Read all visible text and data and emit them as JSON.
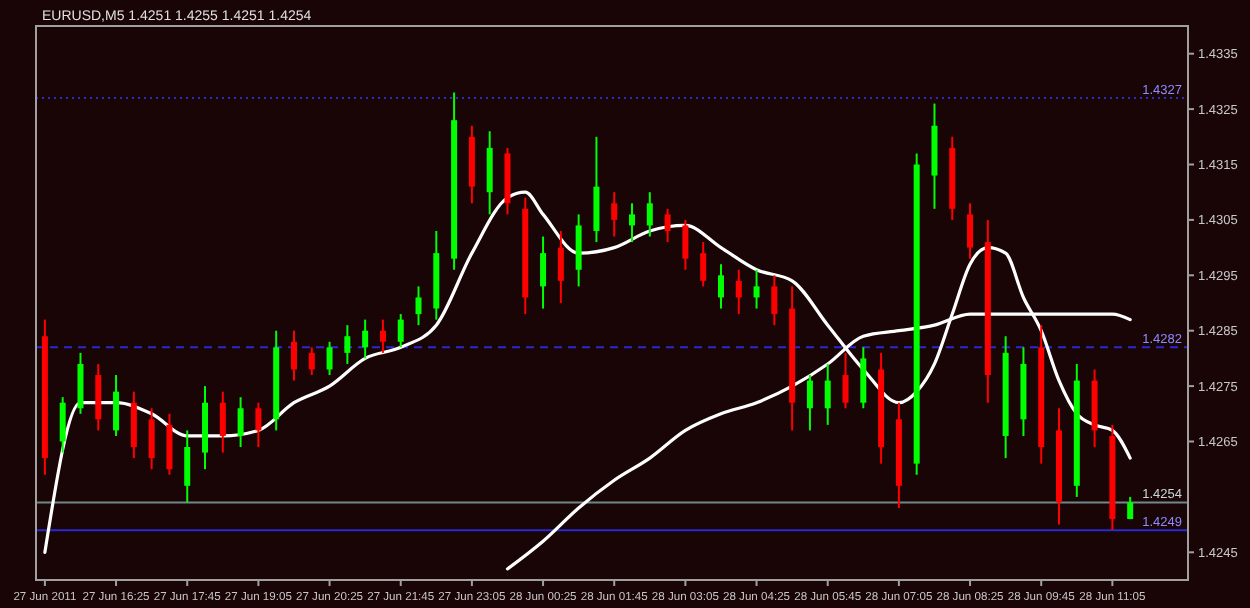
{
  "chart_data": {
    "type": "candlestick",
    "title": "EURUSD,M5  1.4251 1.4255 1.4251 1.4254",
    "x": [
      "2011-06-27T15:05",
      "2011-06-27T15:25",
      "2011-06-27T15:45",
      "2011-06-27T16:05",
      "2011-06-27T16:25",
      "2011-06-27T16:45",
      "2011-06-27T17:05",
      "2011-06-27T17:25",
      "2011-06-27T17:45",
      "2011-06-27T18:05",
      "2011-06-27T18:25",
      "2011-06-27T18:45",
      "2011-06-27T19:05",
      "2011-06-27T19:25",
      "2011-06-27T19:45",
      "2011-06-27T20:05",
      "2011-06-27T20:25",
      "2011-06-27T20:45",
      "2011-06-27T21:05",
      "2011-06-27T21:25",
      "2011-06-27T21:45",
      "2011-06-27T22:05",
      "2011-06-27T22:25",
      "2011-06-27T22:45",
      "2011-06-27T23:05",
      "2011-06-27T23:25",
      "2011-06-27T23:45",
      "2011-06-28T00:05",
      "2011-06-28T00:25",
      "2011-06-28T00:45",
      "2011-06-28T01:05",
      "2011-06-28T01:25",
      "2011-06-28T01:45",
      "2011-06-28T02:05",
      "2011-06-28T02:25",
      "2011-06-28T02:45",
      "2011-06-28T03:05",
      "2011-06-28T03:25",
      "2011-06-28T03:45",
      "2011-06-28T04:05",
      "2011-06-28T04:25",
      "2011-06-28T04:45",
      "2011-06-28T05:05",
      "2011-06-28T05:25",
      "2011-06-28T05:45",
      "2011-06-28T06:05",
      "2011-06-28T06:25",
      "2011-06-28T06:45",
      "2011-06-28T07:05",
      "2011-06-28T07:25",
      "2011-06-28T07:45",
      "2011-06-28T08:05",
      "2011-06-28T08:25",
      "2011-06-28T08:45",
      "2011-06-28T09:05",
      "2011-06-28T09:25",
      "2011-06-28T09:45",
      "2011-06-28T10:05",
      "2011-06-28T10:25",
      "2011-06-28T10:45",
      "2011-06-28T11:05",
      "2011-06-28T11:25"
    ],
    "ohlc": [
      [
        1.4284,
        1.4287,
        1.4259,
        1.4262
      ],
      [
        1.4265,
        1.4273,
        1.4263,
        1.4272
      ],
      [
        1.4271,
        1.4281,
        1.427,
        1.4279
      ],
      [
        1.4277,
        1.4279,
        1.4267,
        1.4269
      ],
      [
        1.4267,
        1.4277,
        1.4266,
        1.4274
      ],
      [
        1.4272,
        1.4274,
        1.4262,
        1.4264
      ],
      [
        1.4269,
        1.4271,
        1.426,
        1.4262
      ],
      [
        1.4268,
        1.427,
        1.4259,
        1.426
      ],
      [
        1.4257,
        1.4267,
        1.4254,
        1.4264
      ],
      [
        1.4263,
        1.4275,
        1.426,
        1.4272
      ],
      [
        1.4272,
        1.4274,
        1.4263,
        1.4266
      ],
      [
        1.4266,
        1.4273,
        1.4264,
        1.4271
      ],
      [
        1.4271,
        1.4272,
        1.4264,
        1.4267
      ],
      [
        1.4269,
        1.4285,
        1.4267,
        1.4282
      ],
      [
        1.4283,
        1.4285,
        1.4276,
        1.4278
      ],
      [
        1.4281,
        1.4282,
        1.4277,
        1.4278
      ],
      [
        1.4278,
        1.4283,
        1.4277,
        1.4282
      ],
      [
        1.4281,
        1.4286,
        1.4279,
        1.4284
      ],
      [
        1.4282,
        1.4287,
        1.428,
        1.4285
      ],
      [
        1.4285,
        1.4287,
        1.4281,
        1.4283
      ],
      [
        1.4283,
        1.4288,
        1.4282,
        1.4287
      ],
      [
        1.4288,
        1.4293,
        1.4286,
        1.4291
      ],
      [
        1.4289,
        1.4303,
        1.4287,
        1.4299
      ],
      [
        1.4298,
        1.4328,
        1.4296,
        1.4323
      ],
      [
        1.432,
        1.4322,
        1.4308,
        1.4311
      ],
      [
        1.431,
        1.4321,
        1.4306,
        1.4318
      ],
      [
        1.4317,
        1.4318,
        1.4306,
        1.4308
      ],
      [
        1.4307,
        1.4309,
        1.4288,
        1.4291
      ],
      [
        1.4293,
        1.4302,
        1.4289,
        1.4299
      ],
      [
        1.43,
        1.4303,
        1.429,
        1.4294
      ],
      [
        1.4296,
        1.4306,
        1.4293,
        1.4304
      ],
      [
        1.4303,
        1.432,
        1.4301,
        1.4311
      ],
      [
        1.4308,
        1.431,
        1.4302,
        1.4305
      ],
      [
        1.4304,
        1.4308,
        1.4301,
        1.4306
      ],
      [
        1.4304,
        1.431,
        1.4302,
        1.4308
      ],
      [
        1.4306,
        1.4307,
        1.4301,
        1.4303
      ],
      [
        1.4304,
        1.4305,
        1.4296,
        1.4298
      ],
      [
        1.4299,
        1.4301,
        1.4293,
        1.4294
      ],
      [
        1.4291,
        1.4297,
        1.4289,
        1.4295
      ],
      [
        1.4294,
        1.4296,
        1.4288,
        1.4291
      ],
      [
        1.4291,
        1.4296,
        1.4289,
        1.4293
      ],
      [
        1.4293,
        1.4295,
        1.4286,
        1.4288
      ],
      [
        1.4289,
        1.4293,
        1.4267,
        1.4272
      ],
      [
        1.4271,
        1.4277,
        1.4267,
        1.4276
      ],
      [
        1.4271,
        1.4279,
        1.4268,
        1.4276
      ],
      [
        1.4277,
        1.4281,
        1.4271,
        1.4272
      ],
      [
        1.4272,
        1.4282,
        1.4271,
        1.428
      ],
      [
        1.4278,
        1.4281,
        1.4261,
        1.4264
      ],
      [
        1.4269,
        1.4272,
        1.4253,
        1.4257
      ],
      [
        1.4261,
        1.4317,
        1.4259,
        1.4315
      ],
      [
        1.4313,
        1.4326,
        1.4307,
        1.4322
      ],
      [
        1.4318,
        1.432,
        1.4305,
        1.4307
      ],
      [
        1.4306,
        1.4308,
        1.4298,
        1.43
      ],
      [
        1.4301,
        1.4305,
        1.4272,
        1.4277
      ],
      [
        1.4266,
        1.4284,
        1.4262,
        1.4281
      ],
      [
        1.4269,
        1.4282,
        1.4266,
        1.4279
      ],
      [
        1.4282,
        1.4286,
        1.4261,
        1.4264
      ],
      [
        1.4267,
        1.4271,
        1.425,
        1.4254
      ],
      [
        1.4257,
        1.4279,
        1.4255,
        1.4276
      ],
      [
        1.4276,
        1.4278,
        1.4264,
        1.4267
      ],
      [
        1.4266,
        1.4268,
        1.4249,
        1.4251
      ],
      [
        1.4251,
        1.4255,
        1.4251,
        1.4254
      ]
    ],
    "series": [
      {
        "type": "line",
        "color": "#ffffff",
        "x": [
          "2011-06-27T15:05",
          "2011-06-27T15:45",
          "2011-06-27T16:25",
          "2011-06-27T17:05",
          "2011-06-27T17:45",
          "2011-06-27T18:25",
          "2011-06-27T19:05",
          "2011-06-27T19:45",
          "2011-06-27T20:25",
          "2011-06-27T21:05",
          "2011-06-27T21:45",
          "2011-06-27T22:25",
          "2011-06-27T23:05",
          "2011-06-27T23:45",
          "2011-06-28T00:05",
          "2011-06-28T00:25",
          "2011-06-28T01:05",
          "2011-06-28T01:45",
          "2011-06-28T02:25",
          "2011-06-28T03:05",
          "2011-06-28T03:45",
          "2011-06-28T04:25",
          "2011-06-28T05:05",
          "2011-06-28T05:45",
          "2011-06-28T06:25",
          "2011-06-28T07:05",
          "2011-06-28T07:25",
          "2011-06-28T07:45",
          "2011-06-28T08:05",
          "2011-06-28T08:25",
          "2011-06-28T08:45",
          "2011-06-28T09:05",
          "2011-06-28T09:25",
          "2011-06-28T09:45",
          "2011-06-28T10:05",
          "2011-06-28T10:25",
          "2011-06-28T10:45",
          "2011-06-28T11:05",
          "2011-06-28T11:25"
        ],
        "values": [
          1.4245,
          1.4272,
          1.4272,
          1.427,
          1.4266,
          1.4266,
          1.4267,
          1.4272,
          1.4275,
          1.428,
          1.4282,
          1.4286,
          1.4299,
          1.4309,
          1.431,
          1.4306,
          1.4299,
          1.43,
          1.4303,
          1.4304,
          1.43,
          1.4296,
          1.4294,
          1.4286,
          1.4278,
          1.4272,
          1.4274,
          1.4279,
          1.4288,
          1.4297,
          1.43,
          1.4299,
          1.4291,
          1.4285,
          1.4276,
          1.427,
          1.4268,
          1.4267,
          1.4262
        ]
      },
      {
        "type": "line",
        "color": "#ffffff",
        "x": [
          "2011-06-27T23:45",
          "2011-06-28T00:25",
          "2011-06-28T01:05",
          "2011-06-28T01:45",
          "2011-06-28T02:25",
          "2011-06-28T03:05",
          "2011-06-28T03:45",
          "2011-06-28T04:25",
          "2011-06-28T05:05",
          "2011-06-28T05:45",
          "2011-06-28T06:25",
          "2011-06-28T07:05",
          "2011-06-28T07:45",
          "2011-06-28T08:25",
          "2011-06-28T09:05",
          "2011-06-28T09:45",
          "2011-06-28T10:25",
          "2011-06-28T11:05",
          "2011-06-28T11:25"
        ],
        "values": [
          1.4242,
          1.4247,
          1.4253,
          1.4258,
          1.4262,
          1.4267,
          1.427,
          1.4272,
          1.4275,
          1.4279,
          1.4284,
          1.4285,
          1.4286,
          1.4288,
          1.4288,
          1.4288,
          1.4288,
          1.4288,
          1.4287
        ]
      }
    ],
    "xlim": [
      "2011-06-27T14:55",
      "2011-06-28T12:30"
    ],
    "xticks": [
      {
        "value": "2011-06-27T15:05",
        "label": "27 Jun 2011"
      },
      {
        "value": "2011-06-27T16:25",
        "label": "27 Jun 16:25"
      },
      {
        "value": "2011-06-27T17:45",
        "label": "27 Jun 17:45"
      },
      {
        "value": "2011-06-27T19:05",
        "label": "27 Jun 19:05"
      },
      {
        "value": "2011-06-27T20:25",
        "label": "27 Jun 20:25"
      },
      {
        "value": "2011-06-27T21:45",
        "label": "27 Jun 21:45"
      },
      {
        "value": "2011-06-27T23:05",
        "label": "27 Jun 23:05"
      },
      {
        "value": "2011-06-28T00:25",
        "label": "28 Jun 00:25"
      },
      {
        "value": "2011-06-28T01:45",
        "label": "28 Jun 01:45"
      },
      {
        "value": "2011-06-28T03:05",
        "label": "28 Jun 03:05"
      },
      {
        "value": "2011-06-28T04:25",
        "label": "28 Jun 04:25"
      },
      {
        "value": "2011-06-28T05:45",
        "label": "28 Jun 05:45"
      },
      {
        "value": "2011-06-28T07:05",
        "label": "28 Jun 07:05"
      },
      {
        "value": "2011-06-28T08:25",
        "label": "28 Jun 08:25"
      },
      {
        "value": "2011-06-28T09:45",
        "label": "28 Jun 09:45"
      },
      {
        "value": "2011-06-28T11:05",
        "label": "28 Jun 11:05"
      }
    ],
    "ylim": [
      1.424,
      1.434
    ],
    "yticks": [
      1.4335,
      1.4325,
      1.4315,
      1.4305,
      1.4295,
      1.4285,
      1.4275,
      1.4265,
      1.4245
    ],
    "ref_lines": [
      {
        "axis": "y",
        "value": 1.4327,
        "label": "1.4327",
        "color": "#2a2ad0",
        "line_style": "dotted"
      },
      {
        "axis": "y",
        "value": 1.4282,
        "label": "1.4282",
        "color": "#2a2ad0",
        "line_style": "dashed"
      },
      {
        "axis": "y",
        "value": 1.4254,
        "label": "1.4254",
        "color": "#708888",
        "line_style": "solid"
      },
      {
        "axis": "y",
        "value": 1.4249,
        "label": "1.4249",
        "color": "#2a2ad0",
        "line_style": "solid"
      }
    ]
  }
}
